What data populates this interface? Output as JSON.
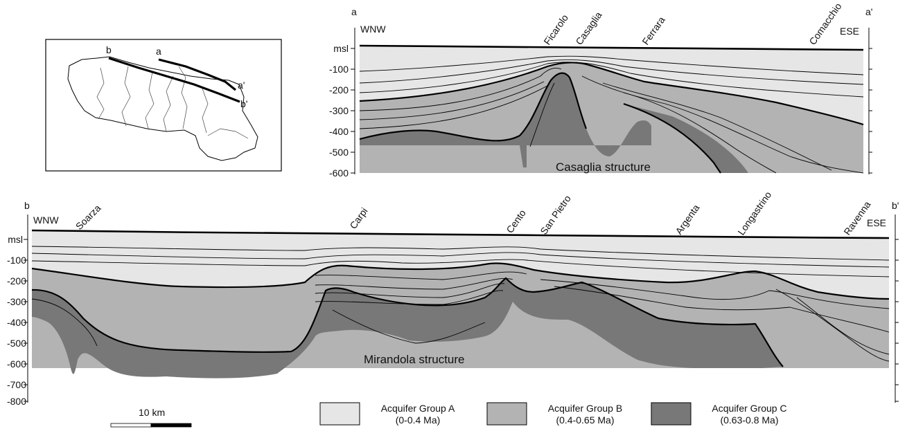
{
  "map": {
    "labels": {
      "b": "b",
      "a": "a",
      "a_prime": "a'",
      "b_prime": "b'"
    }
  },
  "section_a": {
    "start_label": "a",
    "end_label": "a'",
    "left_direction": "WNW",
    "right_direction": "ESE",
    "axis_ticks": [
      "msl",
      "-100",
      "-200",
      "-300",
      "-400",
      "-500",
      "-600"
    ],
    "places": [
      "Ficarolo",
      "Casaglia",
      "Ferrara",
      "Comacchio"
    ],
    "structure_label": "Casaglia structure"
  },
  "section_b": {
    "start_label": "b",
    "end_label": "b'",
    "left_direction": "WNW",
    "right_direction": "ESE",
    "axis_ticks": [
      "msl",
      "-100",
      "-200",
      "-300",
      "-400",
      "-500",
      "-600",
      "-700",
      "-800"
    ],
    "places": [
      "Soarza",
      "Carpi",
      "Cento",
      "San Pietro",
      "Argenta",
      "Longastrino",
      "Ravenna"
    ],
    "structure_label": "Mirandola structure"
  },
  "scale_bar": {
    "label": "10 km"
  },
  "legend": [
    {
      "name": "Acquifer Group A",
      "age": "(0-0.4 Ma)",
      "color": "#e6e6e6"
    },
    {
      "name": "Acquifer Group B",
      "age": "(0.4-0.65 Ma)",
      "color": "#b3b3b3"
    },
    {
      "name": "Acquifer Group C",
      "age": "(0.63-0.8 Ma)",
      "color": "#787878"
    }
  ]
}
